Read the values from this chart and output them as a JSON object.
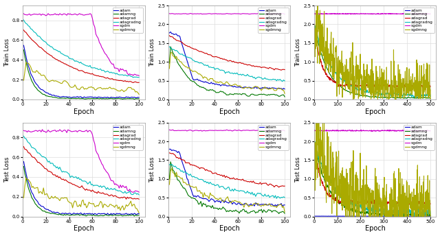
{
  "legend_labels": [
    "adam",
    "adamng",
    "adagrad",
    "adagradng",
    "sgdm",
    "sgdmng"
  ],
  "colors": {
    "adam": "#0000cc",
    "adamng": "#007700",
    "adagrad": "#cc0000",
    "adagradng": "#00bbbb",
    "sgdm": "#cc00cc",
    "sgdmng": "#aaaa00"
  },
  "xlabel": "Epoch",
  "ylabel_train": "Train Loss",
  "ylabel_test": "Test Loss",
  "figsize": [
    6.4,
    3.44
  ],
  "dpi": 100
}
